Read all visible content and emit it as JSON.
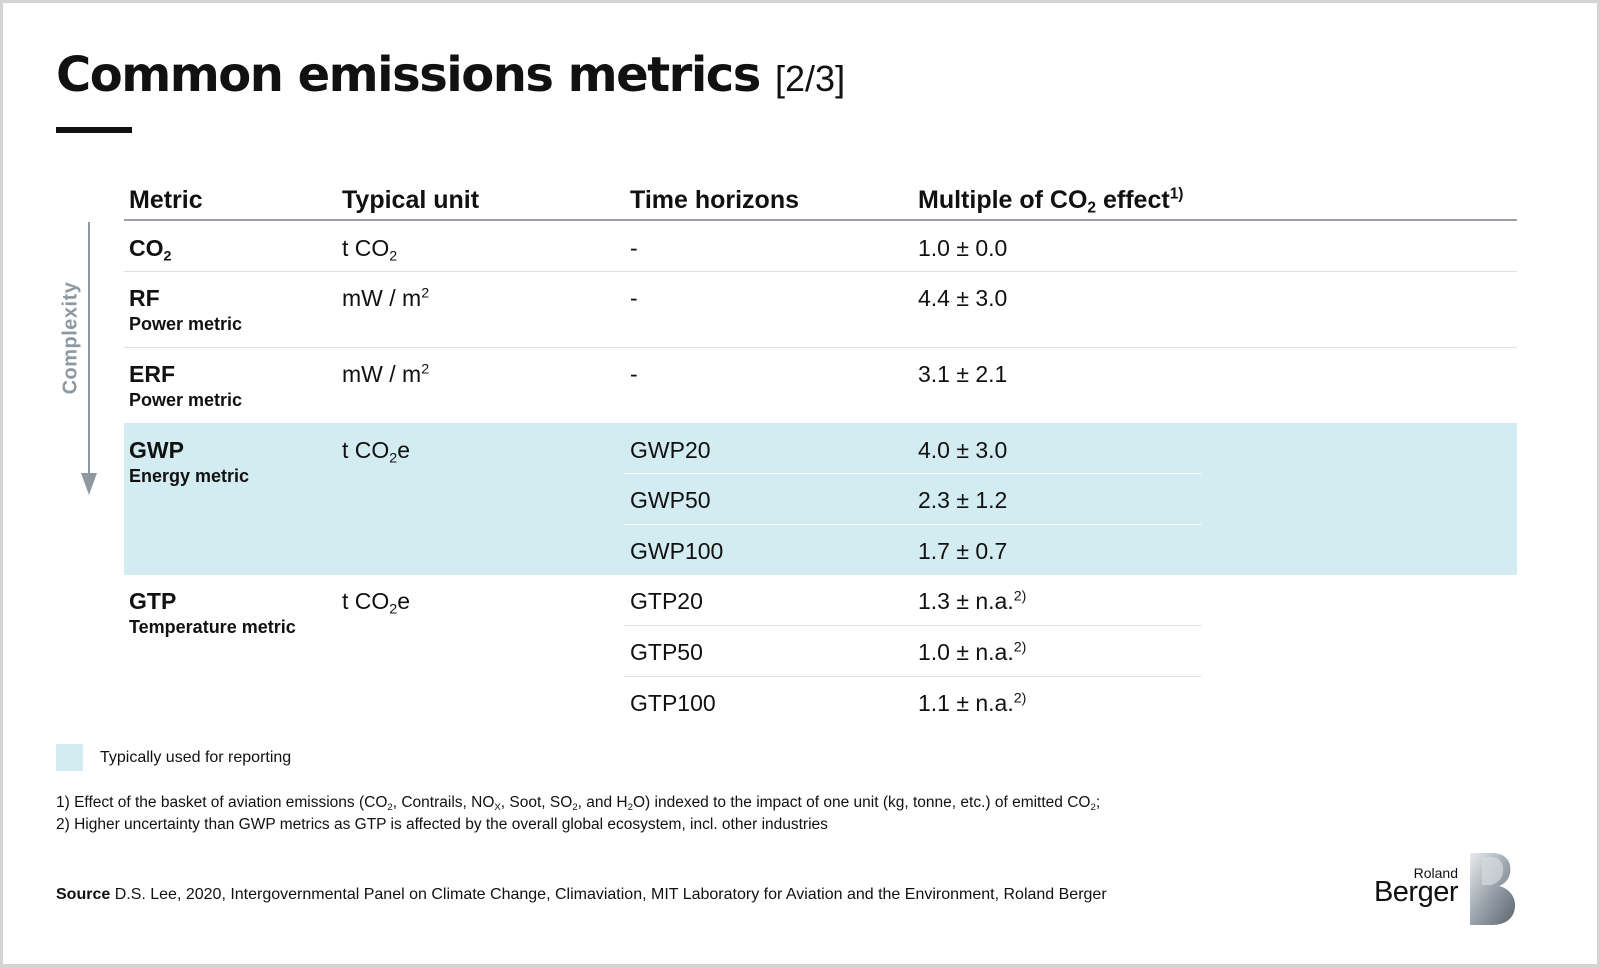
{
  "title": {
    "main": "Common emissions metrics",
    "page": "[2/3]"
  },
  "complexity_label": "Complexity",
  "table": {
    "headers": {
      "metric": "Metric",
      "unit": "Typical unit",
      "time": "Time horizons",
      "multiple_pre": "Multiple of CO",
      "multiple_sub": "2",
      "multiple_post": " effect",
      "multiple_sup": "1)"
    },
    "rows": {
      "co2": {
        "name": "CO",
        "name_sub": "2",
        "unit_pre": "t CO",
        "unit_sub": "2",
        "unit_post": "",
        "time": "-",
        "value": "1.0 ± 0.0"
      },
      "rf": {
        "name": "RF",
        "desc": "Power metric",
        "unit_pre": "mW / m",
        "unit_sup": "2",
        "time": "-",
        "value": "4.4 ± 3.0"
      },
      "erf": {
        "name": "ERF",
        "desc": "Power metric",
        "unit_pre": "mW / m",
        "unit_sup": "2",
        "time": "-",
        "value": "3.1 ± 2.1"
      },
      "gwp": {
        "name": "GWP",
        "desc": "Energy metric",
        "unit_pre": "t CO",
        "unit_sub": "2",
        "unit_post": "e",
        "horizons": [
          {
            "time": "GWP20",
            "value": "4.0 ± 3.0"
          },
          {
            "time": "GWP50",
            "value": "2.3 ± 1.2"
          },
          {
            "time": "GWP100",
            "value": "1.7 ± 0.7"
          }
        ]
      },
      "gtp": {
        "name": "GTP",
        "desc": "Temperature metric",
        "unit_pre": "t CO",
        "unit_sub": "2",
        "unit_post": "e",
        "horizons": [
          {
            "time": "GTP20",
            "value": "1.3 ± n.a.",
            "sup": "2)"
          },
          {
            "time": "GTP50",
            "value": "1.0 ± n.a.",
            "sup": "2)"
          },
          {
            "time": "GTP100",
            "value": "1.1 ± n.a.",
            "sup": "2)"
          }
        ]
      }
    }
  },
  "legend": {
    "label": "Typically used for reporting",
    "color": "#d2ecf1"
  },
  "footnotes": {
    "f1": {
      "a": "1) Effect of the basket of aviation emissions (CO",
      "a_sub": "2",
      "b": ", Contrails, NO",
      "b_sub": "X",
      "c": ", Soot, SO",
      "c_sub": "2",
      "d": ", and H",
      "d_sub": "2",
      "e": "O) indexed to the impact of one unit (kg, tonne, etc.) of emitted CO",
      "e_sub": "2",
      "f": ";"
    },
    "f2": "2) Higher uncertainty than GWP metrics as GTP is affected by the overall global ecosystem, incl. other industries"
  },
  "source": {
    "label": "Source",
    "text": " D.S. Lee, 2020, Intergovernmental Panel on Climate Change, Climaviation, MIT Laboratory for Aviation and the Environment, Roland Berger"
  },
  "logo": {
    "small": "Roland",
    "big": "Berger",
    "icon": "roland-berger-logo-icon"
  }
}
